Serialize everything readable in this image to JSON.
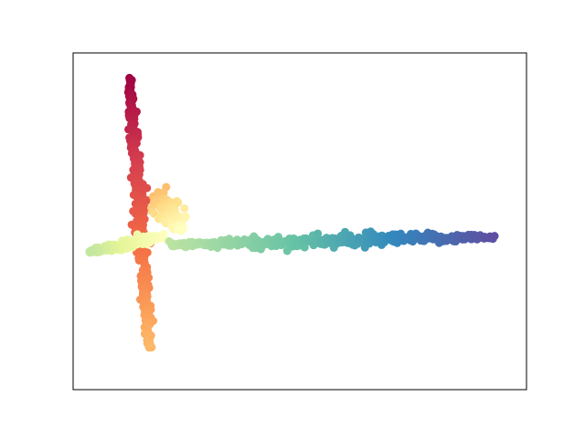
{
  "chart_data": {
    "type": "scatter",
    "title": "",
    "xlabel": "",
    "ylabel": "",
    "xlim": [
      -0.6,
      2.2
    ],
    "ylim": [
      -0.85,
      1.2
    ],
    "show_ticks": false,
    "grid": false,
    "legend": "none",
    "colormap": "Spectral",
    "colormap_stops": [
      "#9e0142",
      "#d53e4f",
      "#f46d43",
      "#fdae61",
      "#fee08b",
      "#ffffbf",
      "#e6f598",
      "#abdda4",
      "#66c2a5",
      "#3288bd",
      "#5e4fa2"
    ],
    "series": [
      {
        "segment": "vertical-arm",
        "from": [
          -0.25,
          1.05
        ],
        "to": [
          -0.13,
          -0.6
        ],
        "color_range": [
          0.0,
          0.32
        ],
        "count": 260,
        "spread": 0.022
      },
      {
        "segment": "fan",
        "from": [
          -0.08,
          0.35
        ],
        "to": [
          0.07,
          0.12
        ],
        "color_range": [
          0.33,
          0.5
        ],
        "count": 90,
        "spread": 0.045
      },
      {
        "segment": "left-arm",
        "from": [
          -0.04,
          0.08
        ],
        "to": [
          -0.5,
          -0.01
        ],
        "color_range": [
          0.5,
          0.66
        ],
        "count": 140,
        "spread": 0.015
      },
      {
        "segment": "horizontal-arm",
        "from": [
          0.0,
          0.03
        ],
        "to": [
          2.0,
          0.08
        ],
        "color_range": [
          0.67,
          1.0
        ],
        "count": 360,
        "spread": 0.02
      }
    ]
  }
}
